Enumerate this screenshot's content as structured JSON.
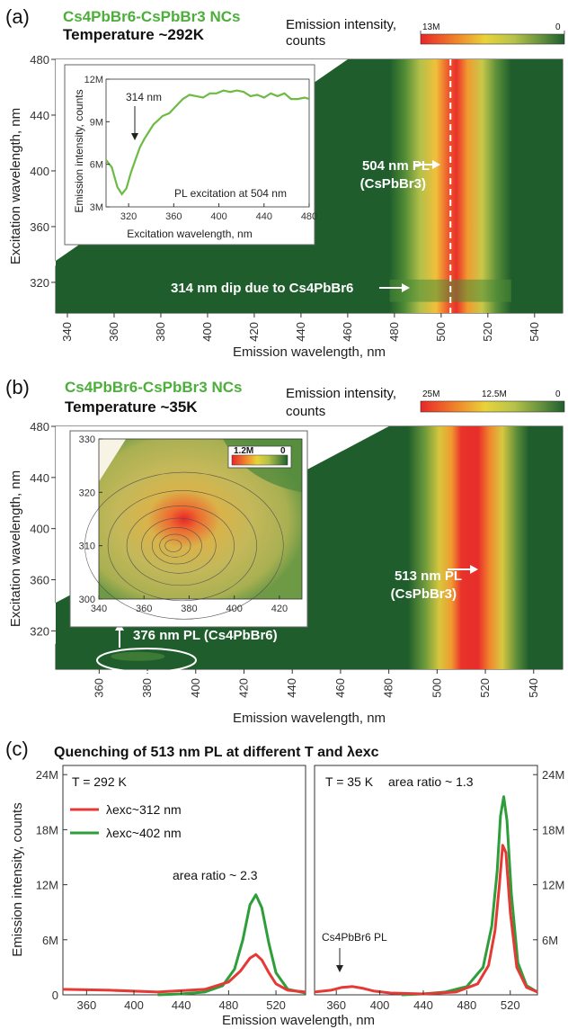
{
  "panels": {
    "a": {
      "label": "(a)",
      "material_title": "Cs4PbBr6-CsPbBr3 NCs",
      "temperature": "Temperature ~292K",
      "colorbar": {
        "label_line1": "Emission intensity,",
        "label_line2": "counts",
        "max": "13M",
        "min": "0"
      },
      "xlabel": "Emission wavelength, nm",
      "ylabel": "Excitation wavelength, nm",
      "ann_504_line1": "504 nm PL",
      "ann_504_line2": "(CsPbBr3)",
      "ann_314": "314 nm dip due to Cs4PbBr6",
      "inset": {
        "ylabel": "Emission intensity, counts",
        "xlabel": "Excitation wavelength, nm",
        "dip_label": "314 nm",
        "caption": "PL excitation at 504 nm"
      }
    },
    "b": {
      "label": "(b)",
      "material_title": "Cs4PbBr6-CsPbBr3 NCs",
      "temperature": "Temperature ~35K",
      "colorbar": {
        "label_line1": "Emission intensity,",
        "label_line2": "counts",
        "max": "25M",
        "mid": "12.5M",
        "min": "0"
      },
      "xlabel": "Emission wavelength, nm",
      "ylabel": "Excitation wavelength, nm",
      "ann_513_line1": "513 nm PL",
      "ann_513_line2": "(CsPbBr3)",
      "ann_376": "376 nm PL (Cs4PbBr6)",
      "inset_colorbar": {
        "max": "1.2M",
        "min": "0"
      }
    },
    "c": {
      "label": "(c)",
      "title": "Quenching of 513 nm PL at different T and λexc",
      "left_temp": "T = 292 K",
      "right_temp": "T = 35 K",
      "legend_312": "λexc~312 nm",
      "legend_402": "λexc~402 nm",
      "ratio_left": "area ratio ~ 2.3",
      "ratio_right": "area ratio ~ 1.3",
      "cs4_pl": "Cs4PbBr6 PL",
      "ylabel": "Emission intensity, counts",
      "xlabel": "Emission wavelength, nm"
    }
  },
  "colors": {
    "green_text": "#4caf3a",
    "dark_green": "#1f5e2c",
    "red": "#e53935",
    "line_green": "#2e9e3a",
    "line_red": "#e53935"
  },
  "chart_data": [
    {
      "id": "a-map",
      "type": "heatmap",
      "x_range": [
        335,
        552
      ],
      "y_range": [
        298,
        480
      ],
      "xticks": [
        340,
        360,
        380,
        400,
        420,
        440,
        460,
        480,
        500,
        520,
        540
      ],
      "yticks": [
        320,
        360,
        400,
        440,
        480
      ],
      "peak_emission_nm": 504,
      "dip_excitation_nm": 314,
      "colorbar": {
        "max": "13M",
        "min": "0"
      }
    },
    {
      "id": "a-inset",
      "type": "line",
      "x": [
        300,
        305,
        310,
        314,
        318,
        322,
        326,
        330,
        334,
        338,
        342,
        346,
        350,
        356,
        362,
        368,
        374,
        380,
        386,
        392,
        398,
        404,
        410,
        416,
        422,
        428,
        434,
        440,
        446,
        452,
        458,
        464,
        470,
        476,
        480
      ],
      "y": [
        6.3,
        5.8,
        4.4,
        3.9,
        4.3,
        5.4,
        6.3,
        7.2,
        7.8,
        8.3,
        8.8,
        9.1,
        9.4,
        9.6,
        10.1,
        10.6,
        10.9,
        10.8,
        10.7,
        11.0,
        11.0,
        11.2,
        11.1,
        11.2,
        11.1,
        10.8,
        10.9,
        10.7,
        11.0,
        10.8,
        11.0,
        10.6,
        10.6,
        10.7,
        10.6
      ],
      "xlim": [
        300,
        480
      ],
      "ylim": [
        3,
        12
      ],
      "xticks": [
        320,
        360,
        400,
        440,
        480
      ],
      "yticks": [
        "3M",
        "6M",
        "9M",
        "12M"
      ]
    },
    {
      "id": "b-map",
      "type": "heatmap",
      "x_range": [
        342,
        552
      ],
      "y_range": [
        290,
        480
      ],
      "xticks": [
        360,
        380,
        400,
        420,
        440,
        460,
        480,
        500,
        520,
        540
      ],
      "yticks": [
        320,
        360,
        400,
        440,
        480
      ],
      "peak_emission_nm": 513,
      "secondary_peak_nm": 376,
      "colorbar": {
        "max": "25M",
        "mid": "12.5M",
        "min": "0"
      }
    },
    {
      "id": "b-inset",
      "type": "heatmap",
      "x_range": [
        340,
        430
      ],
      "y_range": [
        300,
        330
      ],
      "xticks": [
        340,
        360,
        380,
        400,
        420
      ],
      "yticks": [
        300,
        310,
        320,
        330
      ],
      "peak": [
        373,
        310
      ]
    },
    {
      "id": "c-left",
      "type": "line",
      "title": "T = 292 K",
      "xlim": [
        340,
        545
      ],
      "ylim": [
        0,
        25
      ],
      "xticks": [
        360,
        400,
        440,
        480,
        520
      ],
      "yticks": [
        "0",
        "6M",
        "12M",
        "18M",
        "24M"
      ],
      "series": [
        {
          "name": "λexc~312 nm",
          "x": [
            340,
            380,
            420,
            460,
            480,
            490,
            498,
            503,
            508,
            514,
            520,
            530,
            545
          ],
          "y": [
            0.6,
            0.5,
            0.3,
            0.6,
            1.4,
            2.6,
            4.0,
            4.4,
            3.8,
            2.4,
            1.2,
            0.5,
            0.3
          ]
        },
        {
          "name": "λexc~402 nm",
          "x": [
            420,
            440,
            460,
            475,
            485,
            492,
            498,
            503,
            508,
            514,
            520,
            530,
            545
          ],
          "y": [
            0.0,
            0.1,
            0.3,
            1.0,
            2.8,
            6.0,
            9.8,
            10.9,
            9.5,
            5.6,
            2.4,
            0.6,
            0.2
          ]
        }
      ],
      "annotation": "area ratio ~ 2.3"
    },
    {
      "id": "c-right",
      "type": "line",
      "title": "T = 35 K",
      "xlim": [
        340,
        545
      ],
      "ylim": [
        0,
        25
      ],
      "xticks": [
        360,
        400,
        440,
        480,
        520
      ],
      "yticks": [
        "6M",
        "12M",
        "18M",
        "24M"
      ],
      "series": [
        {
          "name": "λexc~312 nm",
          "x": [
            340,
            355,
            365,
            375,
            385,
            395,
            410,
            440,
            470,
            490,
            500,
            506,
            510,
            513,
            516,
            520,
            526,
            535,
            545
          ],
          "y": [
            0.3,
            0.5,
            0.8,
            0.9,
            0.7,
            0.4,
            0.2,
            0.1,
            0.3,
            1.2,
            3.2,
            7.0,
            12.0,
            16.3,
            15.5,
            9.0,
            3.0,
            0.8,
            0.3
          ]
        },
        {
          "name": "λexc~402 nm",
          "x": [
            420,
            440,
            460,
            480,
            495,
            503,
            508,
            511,
            514,
            517,
            521,
            527,
            535,
            545
          ],
          "y": [
            0.0,
            0.1,
            0.3,
            0.9,
            3.0,
            7.5,
            13.5,
            19.5,
            21.6,
            19.0,
            11.0,
            3.5,
            1.0,
            0.3
          ]
        }
      ],
      "annotation": "area ratio ~ 1.3"
    }
  ]
}
